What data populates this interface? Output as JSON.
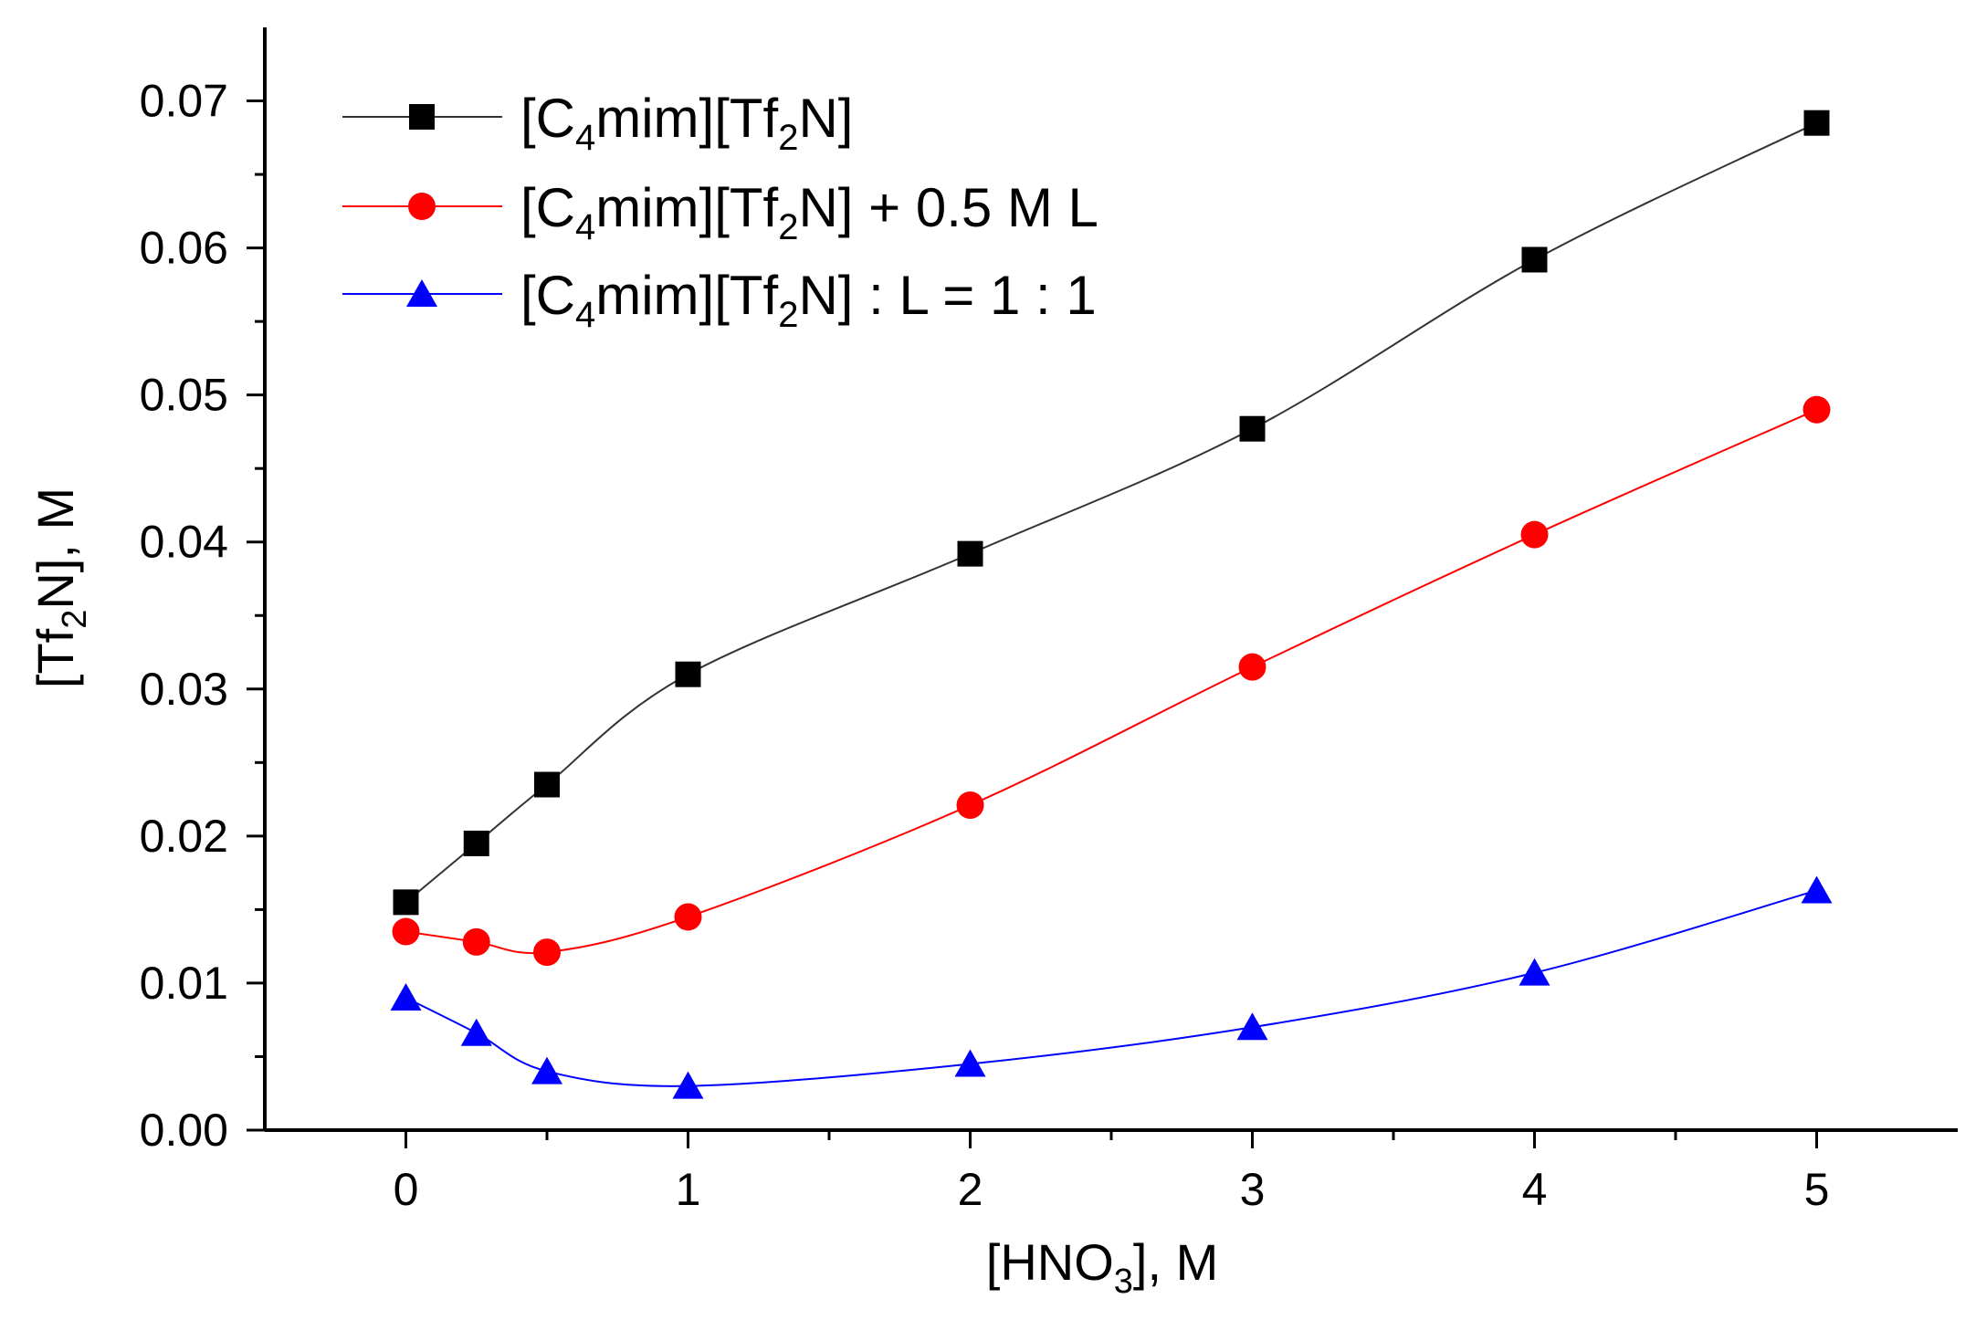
{
  "chart_data": {
    "type": "line",
    "title": "",
    "xlabel": "[HNO3], M",
    "xlabel_parts": {
      "pre": "[HNO",
      "sub": "3",
      "post": "], M"
    },
    "ylabel": "[Tf2N], M",
    "ylabel_parts": {
      "pre": "[Tf",
      "sub": "2",
      "post": "N], M"
    },
    "xlim": [
      -0.5,
      5.5
    ],
    "ylim": [
      0.0,
      0.075
    ],
    "x_ticks": [
      0,
      1,
      2,
      3,
      4,
      5
    ],
    "x_tick_labels": [
      "0",
      "1",
      "2",
      "3",
      "4",
      "5"
    ],
    "y_ticks": [
      0.0,
      0.01,
      0.02,
      0.03,
      0.04,
      0.05,
      0.06,
      0.07
    ],
    "y_tick_labels": [
      "0.00",
      "0.01",
      "0.02",
      "0.03",
      "0.04",
      "0.05",
      "0.06",
      "0.07"
    ],
    "grid": false,
    "legend_position": "top-left",
    "series": [
      {
        "name": "[C4mim][Tf2N]",
        "legend_parts": {
          "a": "[C",
          "sub1": "4",
          "b": "mim][Tf",
          "sub2": "2",
          "c": "N]"
        },
        "color": "#000000",
        "line_color": "#333333",
        "marker": "square",
        "x": [
          0,
          0.25,
          0.5,
          1,
          2,
          3,
          4,
          5
        ],
        "y": [
          0.0155,
          0.0195,
          0.0235,
          0.031,
          0.0392,
          0.0477,
          0.0592,
          0.0685
        ]
      },
      {
        "name": "[C4mim][Tf2N] + 0.5 M L",
        "legend_parts": {
          "a": "[C",
          "sub1": "4",
          "b": "mim][Tf",
          "sub2": "2",
          "c": "N] + 0.5 M L"
        },
        "color": "#ff0000",
        "line_color": "#ff0000",
        "marker": "circle",
        "x": [
          0,
          0.25,
          0.5,
          1,
          2,
          3,
          4,
          5
        ],
        "y": [
          0.0135,
          0.0128,
          0.0121,
          0.0145,
          0.0221,
          0.0315,
          0.0405,
          0.049
        ]
      },
      {
        "name": "[C4mim][Tf2N] : L = 1 : 1",
        "legend_parts": {
          "a": "[C",
          "sub1": "4",
          "b": "mim][Tf",
          "sub2": "2",
          "c": "N] : L = 1 : 1"
        },
        "color": "#0000ff",
        "line_color": "#0000ff",
        "marker": "triangle",
        "x": [
          0,
          0.25,
          0.5,
          1,
          2,
          3,
          4,
          5
        ],
        "y": [
          0.009,
          0.0066,
          0.004,
          0.003,
          0.0045,
          0.007,
          0.0107,
          0.0163
        ]
      }
    ]
  }
}
